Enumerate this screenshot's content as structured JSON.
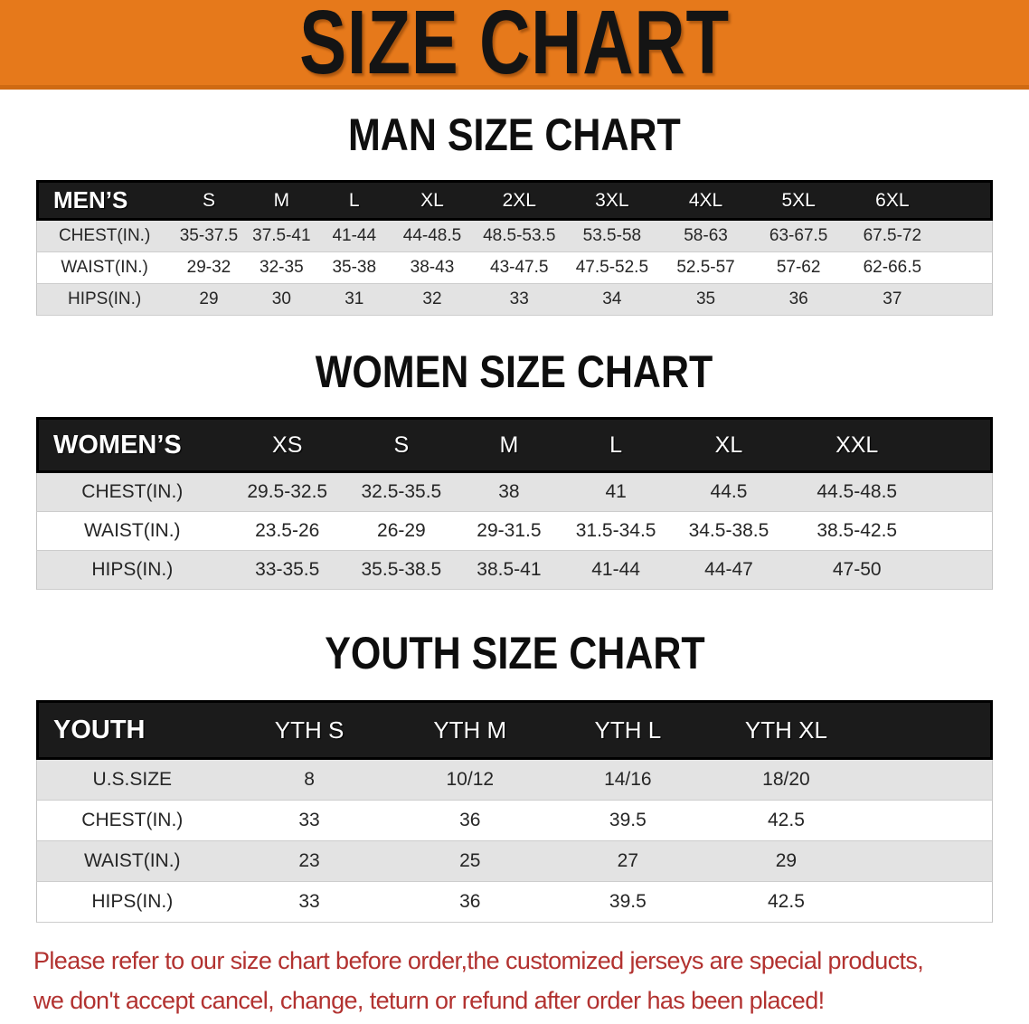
{
  "banner": {
    "title": "SIZE CHART",
    "bg_color": "#e6791b",
    "border_color": "#cf6a12"
  },
  "sections": [
    {
      "id": "men",
      "heading": "MAN SIZE CHART",
      "table": {
        "header_label": "MEN’S",
        "columns": [
          "S",
          "M",
          "L",
          "XL",
          "2XL",
          "3XL",
          "4XL",
          "5XL",
          "6XL"
        ],
        "rows": [
          {
            "label": "CHEST(IN.)",
            "values": [
              "35-37.5",
              "37.5-41",
              "41-44",
              "44-48.5",
              "48.5-53.5",
              "53.5-58",
              "58-63",
              "63-67.5",
              "67.5-72"
            ]
          },
          {
            "label": "WAIST(IN.)",
            "values": [
              "29-32",
              "32-35",
              "35-38",
              "38-43",
              "43-47.5",
              "47.5-52.5",
              "52.5-57",
              "57-62",
              "62-66.5"
            ]
          },
          {
            "label": "HIPS(IN.)",
            "values": [
              "29",
              "30",
              "31",
              "32",
              "33",
              "34",
              "35",
              "36",
              "37"
            ]
          }
        ]
      }
    },
    {
      "id": "women",
      "heading": "WOMEN SIZE CHART",
      "table": {
        "header_label": "WOMEN’S",
        "columns": [
          "XS",
          "S",
          "M",
          "L",
          "XL",
          "XXL"
        ],
        "rows": [
          {
            "label": "CHEST(IN.)",
            "values": [
              "29.5-32.5",
              "32.5-35.5",
              "38",
              "41",
              "44.5",
              "44.5-48.5"
            ]
          },
          {
            "label": "WAIST(IN.)",
            "values": [
              "23.5-26",
              "26-29",
              "29-31.5",
              "31.5-34.5",
              "34.5-38.5",
              "38.5-42.5"
            ]
          },
          {
            "label": "HIPS(IN.)",
            "values": [
              "33-35.5",
              "35.5-38.5",
              "38.5-41",
              "41-44",
              "44-47",
              "47-50"
            ]
          }
        ]
      }
    },
    {
      "id": "youth",
      "heading": "YOUTH SIZE CHART",
      "table": {
        "header_label": "YOUTH",
        "columns": [
          "YTH S",
          "YTH M",
          "YTH L",
          "YTH XL"
        ],
        "rows": [
          {
            "label": "U.S.SIZE",
            "values": [
              "8",
              "10/12",
              "14/16",
              "18/20"
            ]
          },
          {
            "label": "CHEST(IN.)",
            "values": [
              "33",
              "36",
              "39.5",
              "42.5"
            ]
          },
          {
            "label": "WAIST(IN.)",
            "values": [
              "23",
              "25",
              "27",
              "29"
            ]
          },
          {
            "label": "HIPS(IN.)",
            "values": [
              "33",
              "36",
              "39.5",
              "42.5"
            ]
          }
        ]
      }
    }
  ],
  "footer": {
    "line1": "Please refer to our size chart before order,the customized jerseys are special products,",
    "line2": "we don't accept cancel, change, teturn or refund after order has been placed!",
    "text_color": "#b23230"
  }
}
